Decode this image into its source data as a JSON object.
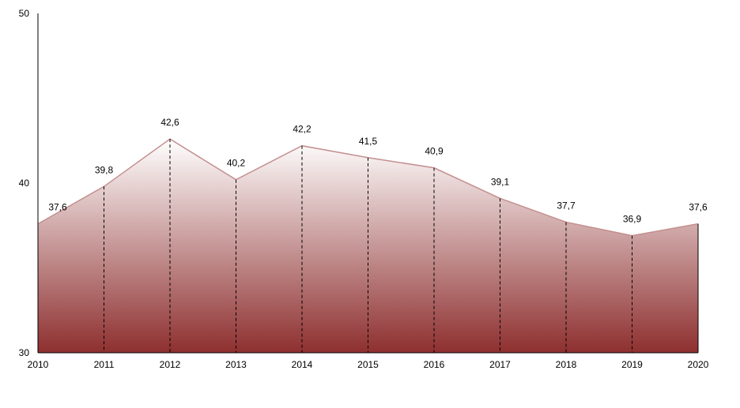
{
  "chart_data": {
    "type": "area",
    "x": [
      "2010",
      "2011",
      "2012",
      "2013",
      "2014",
      "2015",
      "2016",
      "2017",
      "2018",
      "2019",
      "2020"
    ],
    "values": [
      37.6,
      39.8,
      42.6,
      40.2,
      42.2,
      41.5,
      40.9,
      39.1,
      37.7,
      36.9,
      37.6
    ],
    "value_labels": [
      "37,6",
      "39,8",
      "42,6",
      "40,2",
      "42,2",
      "41,5",
      "40,9",
      "39,1",
      "37,7",
      "36,9",
      "37,6"
    ],
    "y_ticks": [
      "30",
      "40",
      "50"
    ],
    "ylim": [
      30,
      50
    ],
    "title": "",
    "xlabel": "",
    "ylabel": "",
    "grid": false,
    "drop_lines": true,
    "colors": {
      "line": "#c48f8f",
      "fill_top": "#ffffff",
      "fill_bottom": "#8e2f2f",
      "drop_line": "#000000",
      "axis": "#000000"
    }
  }
}
